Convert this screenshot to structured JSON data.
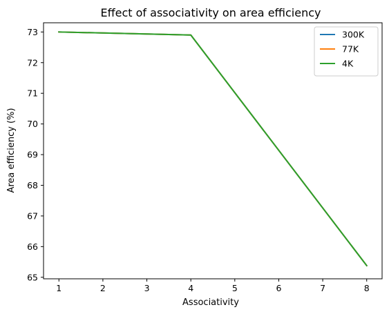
{
  "chart_data": {
    "type": "line",
    "title": "Effect of associativity on area efficiency",
    "xlabel": "Associativity",
    "ylabel": "Area efficiency (%)",
    "x": [
      1,
      4,
      8
    ],
    "xlim": [
      0.65,
      8.35
    ],
    "ylim": [
      64.95,
      73.3
    ],
    "xticks": [
      1,
      2,
      3,
      4,
      5,
      6,
      7,
      8
    ],
    "yticks": [
      65,
      66,
      67,
      68,
      69,
      70,
      71,
      72,
      73
    ],
    "grid": false,
    "legend_position": "top-right",
    "series": [
      {
        "name": "300K",
        "color": "#1f77b4",
        "values": [
          73.0,
          72.9,
          65.38
        ]
      },
      {
        "name": "77K",
        "color": "#ff7f0e",
        "values": [
          73.0,
          72.9,
          65.38
        ]
      },
      {
        "name": "4K",
        "color": "#2ca02c",
        "values": [
          73.0,
          72.9,
          65.38
        ]
      }
    ]
  }
}
